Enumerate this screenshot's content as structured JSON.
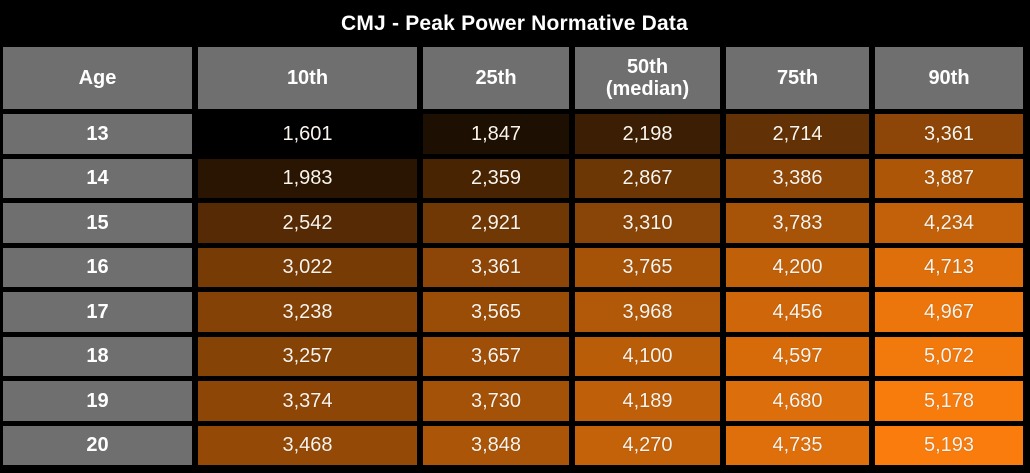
{
  "title": "CMJ - Peak Power Normative Data",
  "colors": {
    "background": "#000000",
    "header_bg": "#6f6f6f",
    "header_text": "#ffffff",
    "value_text": "#faf4ec"
  },
  "chart_data": {
    "type": "heatmap",
    "title": "CMJ - Peak Power Normative Data",
    "columns": [
      "Age",
      "10th",
      "25th",
      "50th\n(median)",
      "75th",
      "90th"
    ],
    "rows": [
      {
        "age": "13",
        "values": [
          1601,
          1847,
          2198,
          2714,
          3361
        ]
      },
      {
        "age": "14",
        "values": [
          1983,
          2359,
          2867,
          3386,
          3887
        ]
      },
      {
        "age": "15",
        "values": [
          2542,
          2921,
          3310,
          3783,
          4234
        ]
      },
      {
        "age": "16",
        "values": [
          3022,
          3361,
          3765,
          4200,
          4713
        ]
      },
      {
        "age": "17",
        "values": [
          3238,
          3565,
          3968,
          4456,
          4967
        ]
      },
      {
        "age": "18",
        "values": [
          3257,
          3657,
          4100,
          4597,
          5072
        ]
      },
      {
        "age": "19",
        "values": [
          3374,
          3730,
          4189,
          4680,
          5178
        ]
      },
      {
        "age": "20",
        "values": [
          3468,
          3848,
          4270,
          4735,
          5193
        ]
      }
    ],
    "heat_scale": {
      "min": 1601,
      "max": 5193,
      "gamma": 0.8,
      "low_color": "#000000",
      "high_color": "#f97c0c"
    }
  }
}
